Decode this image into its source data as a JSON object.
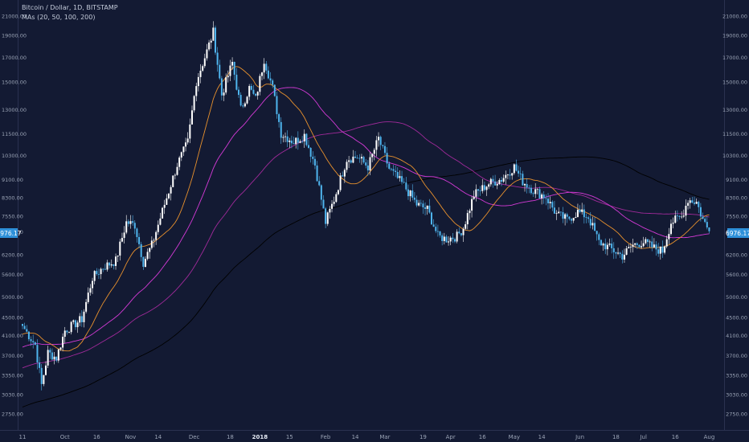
{
  "legend": {
    "symbol": "Bitcoin / Dollar, 1D, BITSTAMP",
    "indicator": "MAs (20, 50, 100, 200)"
  },
  "current_price_label": "6976.17",
  "colors": {
    "background": "#131a33",
    "candle_up": "#ffffff",
    "candle_down": "#4fb5ee",
    "ma20": "#e8912d",
    "ma50": "#d43ad6",
    "ma100": "#a02a9a",
    "ma200": "#000000",
    "axis_text": "#9aa3b5",
    "price_badge": "#2e90d9"
  },
  "chart_data": {
    "type": "candlestick",
    "title": "Bitcoin / Dollar, 1D, BITSTAMP",
    "yscale": "log",
    "ylim": [
      2600,
      22000
    ],
    "grid": false,
    "y_ticks": [
      "21000.00",
      "19000.00",
      "17000.00",
      "15000.00",
      "13000.00",
      "11500.00",
      "10300.00",
      "9100.00",
      "8300.00",
      "7550.00",
      "6970.00",
      "6200.00",
      "5600.00",
      "5000.00",
      "4500.00",
      "4100.00",
      "3700.00",
      "3350.00",
      "3030.00",
      "2750.00"
    ],
    "x_ticks": [
      "11",
      "Oct",
      "16",
      "Nov",
      "14",
      "Dec",
      "18",
      "2018",
      "15",
      "Feb",
      "14",
      "Mar",
      "19",
      "Apr",
      "16",
      "May",
      "14",
      "Jun",
      "18",
      "Jul",
      "16",
      "Aug"
    ],
    "x_tick_days": [
      0,
      20,
      35,
      51,
      64,
      81,
      98,
      112,
      126,
      143,
      157,
      171,
      189,
      202,
      217,
      232,
      245,
      263,
      280,
      293,
      308,
      324
    ],
    "bold_tick": "2018",
    "series_names": [
      "MA 20",
      "MA 50",
      "MA 100",
      "MA 200"
    ],
    "price_path": [
      {
        "day": 0,
        "price": 4300
      },
      {
        "day": 6,
        "price": 3900
      },
      {
        "day": 9,
        "price": 3180
      },
      {
        "day": 12,
        "price": 3750
      },
      {
        "day": 16,
        "price": 3650
      },
      {
        "day": 20,
        "price": 4200
      },
      {
        "day": 28,
        "price": 4450
      },
      {
        "day": 33,
        "price": 5500
      },
      {
        "day": 38,
        "price": 5800
      },
      {
        "day": 44,
        "price": 6000
      },
      {
        "day": 49,
        "price": 7300
      },
      {
        "day": 53,
        "price": 7200
      },
      {
        "day": 57,
        "price": 5950
      },
      {
        "day": 61,
        "price": 6500
      },
      {
        "day": 67,
        "price": 8000
      },
      {
        "day": 73,
        "price": 9800
      },
      {
        "day": 78,
        "price": 11000
      },
      {
        "day": 82,
        "price": 15000
      },
      {
        "day": 87,
        "price": 17500
      },
      {
        "day": 90,
        "price": 19300
      },
      {
        "day": 94,
        "price": 14000
      },
      {
        "day": 99,
        "price": 16500
      },
      {
        "day": 103,
        "price": 13000
      },
      {
        "day": 107,
        "price": 14500
      },
      {
        "day": 110,
        "price": 13700
      },
      {
        "day": 114,
        "price": 16800
      },
      {
        "day": 118,
        "price": 14500
      },
      {
        "day": 122,
        "price": 11500
      },
      {
        "day": 128,
        "price": 11000
      },
      {
        "day": 133,
        "price": 11400
      },
      {
        "day": 138,
        "price": 9800
      },
      {
        "day": 143,
        "price": 7300
      },
      {
        "day": 147,
        "price": 8200
      },
      {
        "day": 153,
        "price": 10100
      },
      {
        "day": 158,
        "price": 10200
      },
      {
        "day": 163,
        "price": 9700
      },
      {
        "day": 168,
        "price": 11200
      },
      {
        "day": 173,
        "price": 9600
      },
      {
        "day": 180,
        "price": 8800
      },
      {
        "day": 186,
        "price": 8000
      },
      {
        "day": 191,
        "price": 7800
      },
      {
        "day": 196,
        "price": 6800
      },
      {
        "day": 200,
        "price": 6700
      },
      {
        "day": 205,
        "price": 6800
      },
      {
        "day": 208,
        "price": 7100
      },
      {
        "day": 213,
        "price": 8400
      },
      {
        "day": 220,
        "price": 8900
      },
      {
        "day": 226,
        "price": 9100
      },
      {
        "day": 232,
        "price": 9700
      },
      {
        "day": 236,
        "price": 9000
      },
      {
        "day": 241,
        "price": 8600
      },
      {
        "day": 247,
        "price": 8300
      },
      {
        "day": 252,
        "price": 7600
      },
      {
        "day": 257,
        "price": 7400
      },
      {
        "day": 262,
        "price": 7700
      },
      {
        "day": 267,
        "price": 7500
      },
      {
        "day": 272,
        "price": 6600
      },
      {
        "day": 277,
        "price": 6400
      },
      {
        "day": 283,
        "price": 6150
      },
      {
        "day": 288,
        "price": 6500
      },
      {
        "day": 293,
        "price": 6600
      },
      {
        "day": 298,
        "price": 6400
      },
      {
        "day": 302,
        "price": 6300
      },
      {
        "day": 306,
        "price": 7300
      },
      {
        "day": 311,
        "price": 7500
      },
      {
        "day": 314,
        "price": 8200
      },
      {
        "day": 318,
        "price": 8100
      },
      {
        "day": 321,
        "price": 7400
      },
      {
        "day": 324,
        "price": 6976
      }
    ]
  }
}
